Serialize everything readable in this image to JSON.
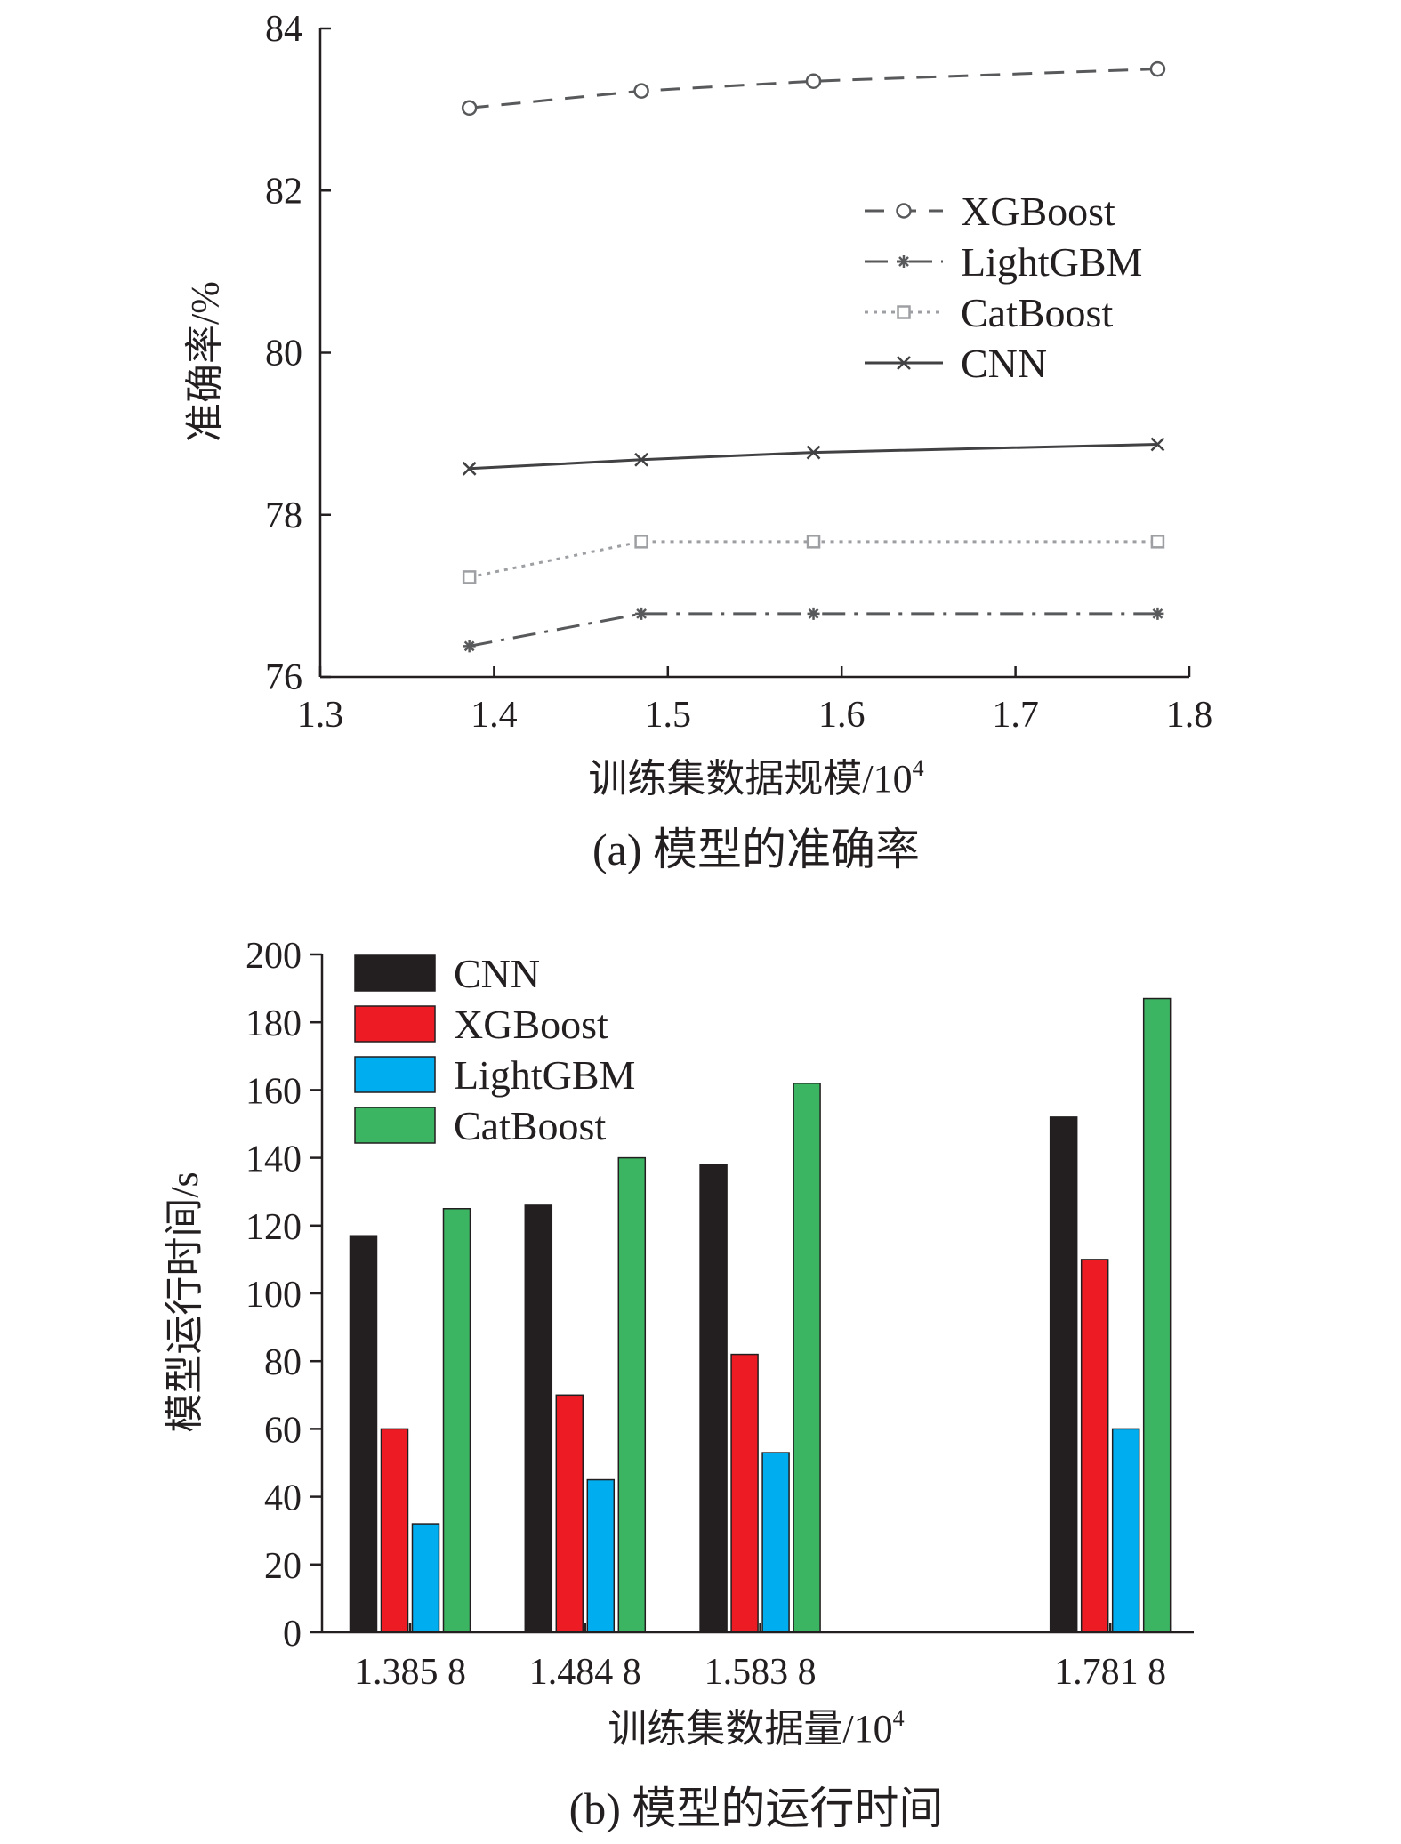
{
  "figure": {
    "caption_a": "(a) 模型的准确率",
    "caption_b": "(b) 模型的运行时间"
  },
  "chart_data": [
    {
      "type": "line",
      "title": "(a) 模型的准确率",
      "xlabel": "训练集数据规模/10",
      "xlabel_sup": "4",
      "ylabel": "准确率/%",
      "xlim": [
        1.3,
        1.8
      ],
      "ylim": [
        76,
        84
      ],
      "x_ticks": [
        "1.3",
        "1.4",
        "1.5",
        "1.6",
        "1.7",
        "1.8"
      ],
      "y_ticks": [
        "76",
        "78",
        "80",
        "82",
        "84"
      ],
      "grid": false,
      "legend_position": "right, upper middle",
      "x": [
        1.3858,
        1.4848,
        1.5838,
        1.7818
      ],
      "series": [
        {
          "name": "XGBoost",
          "values": [
            83.02,
            83.23,
            83.35,
            83.5
          ],
          "color": "#58595b",
          "dash": "dashed",
          "marker": "circle"
        },
        {
          "name": "LightGBM",
          "values": [
            76.38,
            76.78,
            76.78,
            76.78
          ],
          "color": "#58595b",
          "dash": "dashdot",
          "marker": "asterisk"
        },
        {
          "name": "CatBoost",
          "values": [
            77.23,
            77.67,
            77.67,
            77.67
          ],
          "color": "#9d9fa2",
          "dash": "dotted",
          "marker": "square"
        },
        {
          "name": "CNN",
          "values": [
            78.57,
            78.68,
            78.77,
            78.87
          ],
          "color": "#414042",
          "dash": "solid",
          "marker": "x"
        }
      ]
    },
    {
      "type": "bar",
      "title": "(b) 模型的运行时间",
      "xlabel": "训练集数据量/10",
      "xlabel_sup": "4",
      "ylabel": "模型运行时间/s",
      "ylim": [
        0,
        200
      ],
      "y_ticks": [
        "0",
        "20",
        "40",
        "60",
        "80",
        "100",
        "120",
        "140",
        "160",
        "180",
        "200"
      ],
      "x": [
        1.3858,
        1.4848,
        1.5838,
        1.7818
      ],
      "categories": [
        "1.385 8",
        "1.484 8",
        "1.583 8",
        "1.781 8"
      ],
      "grid": false,
      "legend_position": "top-left",
      "series": [
        {
          "name": "CNN",
          "values": [
            117,
            126,
            138,
            152
          ],
          "color": "#231f20"
        },
        {
          "name": "XGBoost",
          "values": [
            60,
            70,
            82,
            110
          ],
          "color": "#ed1c24"
        },
        {
          "name": "LightGBM",
          "values": [
            32,
            45,
            53,
            60
          ],
          "color": "#00aeef"
        },
        {
          "name": "CatBoost",
          "values": [
            125,
            140,
            162,
            187
          ],
          "color": "#3cb563"
        }
      ]
    }
  ]
}
